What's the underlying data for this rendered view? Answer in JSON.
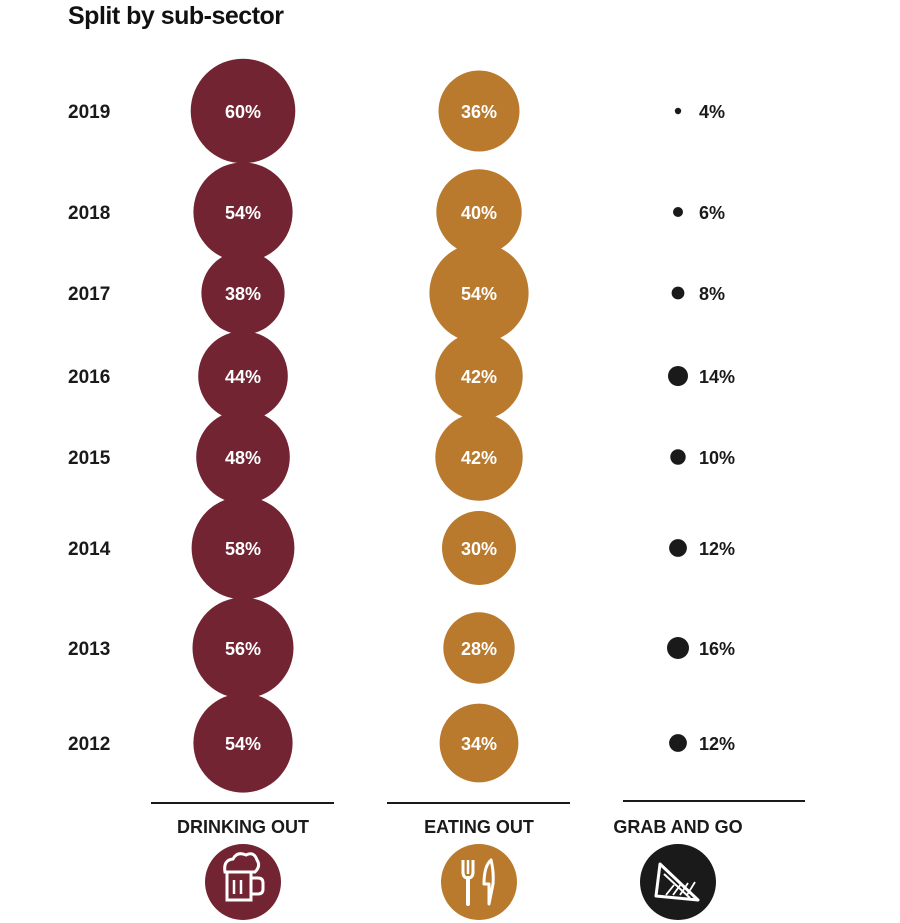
{
  "colors": {
    "drinking": "#722432",
    "eating": "#b97a2e",
    "grab": "#1a1a1a"
  },
  "chart_data": {
    "type": "bubble-grid",
    "title": "Split by sub-sector",
    "years": [
      "2019",
      "2018",
      "2017",
      "2016",
      "2015",
      "2014",
      "2013",
      "2012"
    ],
    "series": [
      {
        "name": "DRINKING OUT",
        "icon": "beer-mug-icon",
        "values": [
          60,
          54,
          38,
          44,
          48,
          58,
          56,
          54
        ]
      },
      {
        "name": "EATING OUT",
        "icon": "fork-knife-icon",
        "values": [
          36,
          40,
          54,
          42,
          42,
          30,
          28,
          34
        ]
      },
      {
        "name": "GRAB AND GO",
        "icon": "sandwich-icon",
        "values": [
          4,
          6,
          8,
          14,
          10,
          12,
          16,
          12
        ]
      }
    ],
    "unit": "%"
  }
}
